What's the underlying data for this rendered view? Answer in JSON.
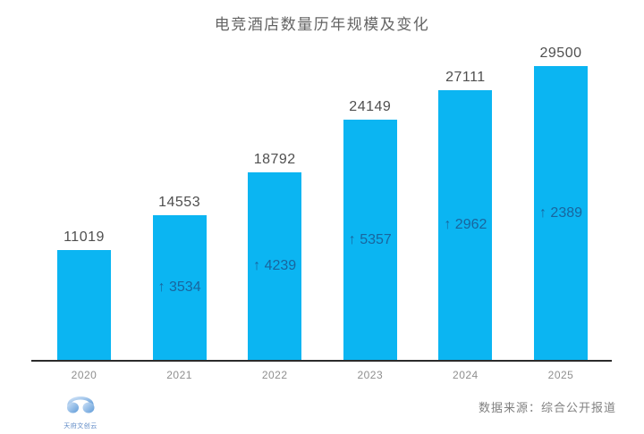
{
  "title": "电竞酒店数量历年规模及变化",
  "source_label": "数据来源：综合公开报道",
  "logo": {
    "name": "天府文创云",
    "icon": "headphones-icon"
  },
  "colors": {
    "bar": "#0bb5f2",
    "delta_text": "#19659e",
    "axis_line": "#2b2b2b",
    "title_text": "#646464",
    "value_label": "#4f4f4f",
    "year_label": "#8f8f8f",
    "source_text": "#808080"
  },
  "chart_data": {
    "type": "bar",
    "title": "电竞酒店数量历年规模及变化",
    "categories": [
      "2020",
      "2021",
      "2022",
      "2023",
      "2024",
      "2025"
    ],
    "values": [
      11019,
      14553,
      18792,
      24149,
      27111,
      29500
    ],
    "deltas": [
      null,
      3534,
      4239,
      5357,
      2962,
      2389
    ],
    "delta_prefix": "↑",
    "xlabel": "",
    "ylabel": "",
    "ylim": [
      0,
      29500
    ],
    "grid": false,
    "legend": null,
    "value_labels_position": "above-bar",
    "delta_labels_position": "inside-bar-center"
  }
}
